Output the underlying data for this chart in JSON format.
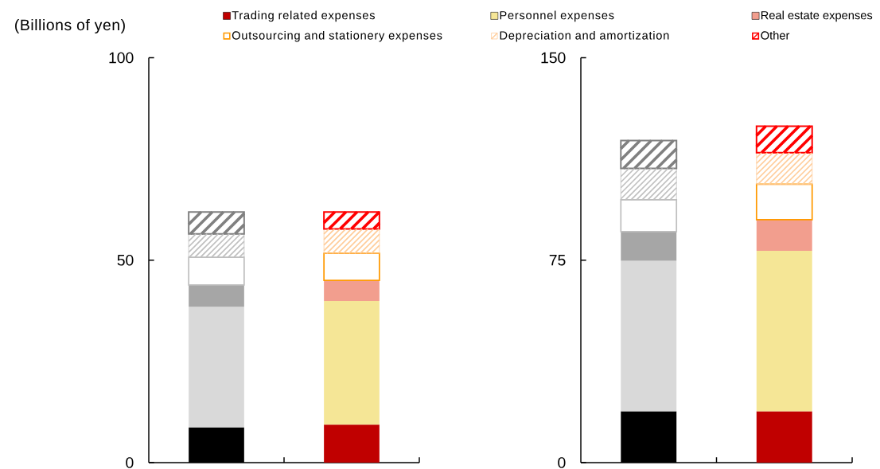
{
  "chart_data": [
    {
      "type": "bar",
      "stacked": true,
      "ylabel": "(Billions of yen)",
      "categories": [
        null,
        null
      ],
      "ylim": [
        0,
        100
      ],
      "yticks": [
        0,
        50,
        100
      ],
      "legend": "top",
      "series": [
        {
          "name": "Trading related expenses",
          "color": "#c00000",
          "colors": [
            "#000000",
            "#c00000"
          ],
          "values": [
            8.7,
            9.4
          ]
        },
        {
          "name": "Personnel expenses",
          "color": "#f5e696",
          "colors": [
            "#d9d9d9",
            "#f5e696"
          ],
          "values": [
            29.8,
            30.5
          ]
        },
        {
          "name": "Real estate expenses",
          "color": "#f29e8e",
          "colors": [
            "#a6a6a6",
            "#f29e8e"
          ],
          "values": [
            5.4,
            5.1
          ]
        },
        {
          "name": "Outsourcing and stationery expenses",
          "color": "#ff9900",
          "colors": [
            "#bfbfbf",
            "#ff9900"
          ],
          "values": [
            6.8,
            6.7
          ]
        },
        {
          "name": "Depreciation and amortization",
          "color": "#ffcc99",
          "colors": [
            "#bfbfbf",
            "#ffcc99"
          ],
          "values": [
            5.8,
            6.0
          ]
        },
        {
          "name": "Other",
          "color": "#ff0000",
          "colors": [
            "#808080",
            "#ff0000"
          ],
          "values": [
            5.4,
            4.2
          ]
        }
      ]
    },
    {
      "type": "bar",
      "stacked": true,
      "categories": [
        null,
        null
      ],
      "ylim": [
        0,
        150
      ],
      "yticks": [
        0,
        75,
        150
      ],
      "series": [
        {
          "colors": [
            "#000000",
            "#c00000"
          ],
          "values": [
            19.0,
            19.0
          ]
        },
        {
          "colors": [
            "#d9d9d9",
            "#f5e696"
          ],
          "values": [
            55.8,
            59.5
          ]
        },
        {
          "colors": [
            "#a6a6a6",
            "#f29e8e"
          ],
          "values": [
            10.8,
            11.5
          ]
        },
        {
          "colors": [
            "#bfbfbf",
            "#ff9900"
          ],
          "values": [
            11.8,
            13.1
          ]
        },
        {
          "colors": [
            "#bfbfbf",
            "#ffcc99"
          ],
          "values": [
            11.6,
            11.7
          ]
        },
        {
          "colors": [
            "#808080",
            "#ff0000"
          ],
          "values": [
            10.3,
            9.8
          ]
        }
      ]
    }
  ]
}
